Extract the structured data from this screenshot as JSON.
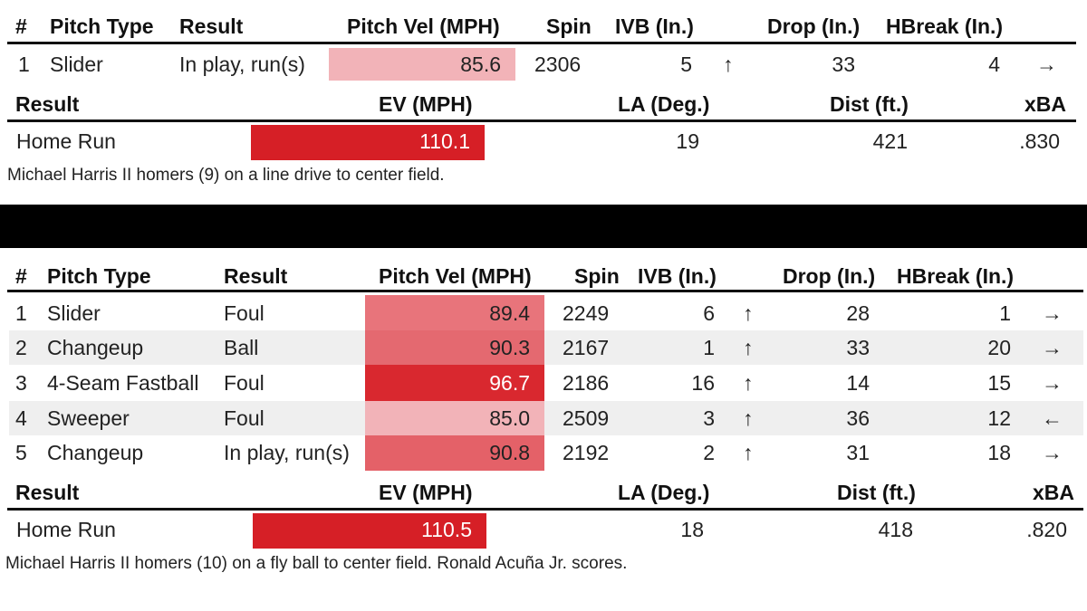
{
  "pitch_headers": {
    "num": "#",
    "pitch_type": "Pitch Type",
    "result": "Result",
    "velocity": "Pitch Vel (MPH)",
    "spin": "Spin",
    "ivb": "IVB (In.)",
    "drop": "Drop (In.)",
    "hbreak": "HBreak (In.)"
  },
  "outcome_headers": {
    "result": "Result",
    "ev": "EV (MPH)",
    "la": "LA (Deg.)",
    "dist": "Dist (ft.)",
    "xba": "xBA"
  },
  "colors": {
    "bar_light": "#f2b3b8",
    "bar_mid": "#e87077",
    "bar_dark": "#d9282f",
    "ev_red": "#d61f26"
  },
  "at_bat_1": {
    "pitches": [
      {
        "num": "1",
        "pitch_type": "Slider",
        "result": "In play, run(s)",
        "velocity": "85.6",
        "spin": "2306",
        "ivb": "5",
        "ivb_arrow": "↑",
        "drop": "33",
        "hbreak": "4",
        "hbreak_arrow": "→"
      }
    ],
    "outcome": {
      "result": "Home Run",
      "ev": "110.1",
      "la": "19",
      "dist": "421",
      "xba": ".830"
    },
    "description": "Michael Harris II homers (9) on a line drive to center field."
  },
  "at_bat_2": {
    "pitches": [
      {
        "num": "1",
        "pitch_type": "Slider",
        "result": "Foul",
        "velocity": "89.4",
        "spin": "2249",
        "ivb": "6",
        "ivb_arrow": "↑",
        "drop": "28",
        "hbreak": "1",
        "hbreak_arrow": "→"
      },
      {
        "num": "2",
        "pitch_type": "Changeup",
        "result": "Ball",
        "velocity": "90.3",
        "spin": "2167",
        "ivb": "1",
        "ivb_arrow": "↑",
        "drop": "33",
        "hbreak": "20",
        "hbreak_arrow": "→"
      },
      {
        "num": "3",
        "pitch_type": "4-Seam Fastball",
        "result": "Foul",
        "velocity": "96.7",
        "spin": "2186",
        "ivb": "16",
        "ivb_arrow": "↑",
        "drop": "14",
        "hbreak": "15",
        "hbreak_arrow": "→"
      },
      {
        "num": "4",
        "pitch_type": "Sweeper",
        "result": "Foul",
        "velocity": "85.0",
        "spin": "2509",
        "ivb": "3",
        "ivb_arrow": "↑",
        "drop": "36",
        "hbreak": "12",
        "hbreak_arrow": "←"
      },
      {
        "num": "5",
        "pitch_type": "Changeup",
        "result": "In play, run(s)",
        "velocity": "90.8",
        "spin": "2192",
        "ivb": "2",
        "ivb_arrow": "↑",
        "drop": "31",
        "hbreak": "18",
        "hbreak_arrow": "→"
      }
    ],
    "outcome": {
      "result": "Home Run",
      "ev": "110.5",
      "la": "18",
      "dist": "418",
      "xba": ".820"
    },
    "description": "Michael Harris II homers (10) on a fly ball to center field. Ronald Acuña Jr. scores."
  }
}
